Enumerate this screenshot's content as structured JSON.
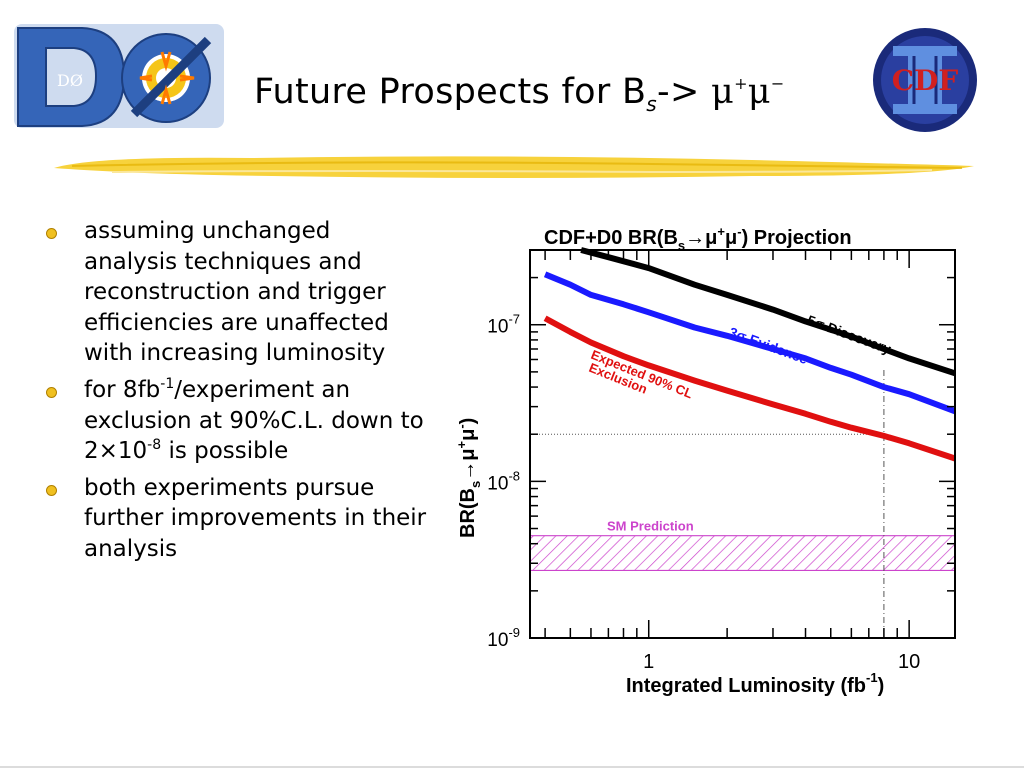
{
  "slide": {
    "title_main": "Future Prospects for B",
    "title_sub": "s",
    "title_arrow": "->",
    "title_mu": "μ",
    "title_plus": "+",
    "title_minus": "−",
    "logo_left": "DØ",
    "logo_right": "CDF"
  },
  "bullets": [
    {
      "text": "assuming unchanged analysis techniques and reconstruction and trigger efficiencies are unaffected with increasing luminosity"
    },
    {
      "pre": "for 8fb",
      "sup1": "-1",
      "mid": "/experiment an exclusion at 90%C.L. down to 2×10",
      "sup2": "-8",
      "post": " is possible"
    },
    {
      "text": "both experiments pursue further improvements in their analysis"
    }
  ],
  "chart_data": {
    "type": "line",
    "title_prefix": "CDF+D0 BR(B",
    "title_sub": "s",
    "title_arrow": "→μ",
    "title_plus": "+",
    "title_mu2": "μ",
    "title_minus": "-",
    "title_suffix": ") Projection",
    "xlabel": "Integrated Luminosity  (fb",
    "xlabel_sup": "-1",
    "xlabel_close": ")",
    "ylabel_prefix": "BR(B",
    "ylabel_sub": "s",
    "ylabel_rest": "→μ",
    "ylabel_plus": "+",
    "ylabel_mu2": "μ",
    "ylabel_minus": "-",
    "ylabel_close": ")",
    "x_scale": "log",
    "y_scale": "log",
    "xlim": [
      0.35,
      15
    ],
    "ylim": [
      1e-09,
      3e-07
    ],
    "x_ticks": [
      {
        "value": 1,
        "label": "1"
      },
      {
        "value": 10,
        "label": "10"
      }
    ],
    "y_ticks": [
      {
        "value": 1e-09,
        "base": "10",
        "exp": "-9"
      },
      {
        "value": 1e-08,
        "base": "10",
        "exp": "-8"
      },
      {
        "value": 1e-07,
        "base": "10",
        "exp": "-7"
      }
    ],
    "series": [
      {
        "name": "5σ Discovery",
        "color": "#000000",
        "x": [
          0.55,
          0.7,
          1.0,
          1.5,
          2,
          3,
          4,
          5,
          6,
          8,
          10,
          15
        ],
        "y": [
          3e-07,
          2.7e-07,
          2.3e-07,
          1.8e-07,
          1.55e-07,
          1.25e-07,
          1.05e-07,
          9.3e-08,
          8.4e-08,
          7e-08,
          6.1e-08,
          4.9e-08
        ]
      },
      {
        "name": "3σ Evidence",
        "color": "#1a1aff",
        "x": [
          0.4,
          0.5,
          0.6,
          0.8,
          1.0,
          1.5,
          2,
          3,
          4,
          5,
          6,
          8,
          10,
          15
        ],
        "y": [
          2.1e-07,
          1.8e-07,
          1.55e-07,
          1.35e-07,
          1.2e-07,
          9.6e-08,
          8.5e-08,
          7e-08,
          6.1e-08,
          5.3e-08,
          4.8e-08,
          4e-08,
          3.6e-08,
          2.8e-08
        ]
      },
      {
        "name": "Expected 90% CL Exclusion",
        "color": "#e01010",
        "x": [
          0.4,
          0.5,
          0.6,
          0.8,
          1.0,
          1.5,
          2,
          3,
          4,
          5,
          6,
          8,
          10,
          15
        ],
        "y": [
          1.1e-07,
          9e-08,
          7.7e-08,
          6.3e-08,
          5.5e-08,
          4.4e-08,
          3.8e-08,
          3.1e-08,
          2.7e-08,
          2.4e-08,
          2.2e-08,
          1.95e-08,
          1.75e-08,
          1.4e-08
        ]
      }
    ],
    "annotations": {
      "discovery_label": "5σ Discovery",
      "evidence_label": "3σ Evidence",
      "exclusion_line1": "Expected 90% CL",
      "exclusion_line2": "Exclusion",
      "sm_label": "SM Prediction"
    },
    "sm_band": {
      "low": 2.7e-09,
      "high": 4.5e-09,
      "color": "#cc44cc"
    },
    "reference_x": 8,
    "reference_y": 2e-08,
    "grid": false
  }
}
